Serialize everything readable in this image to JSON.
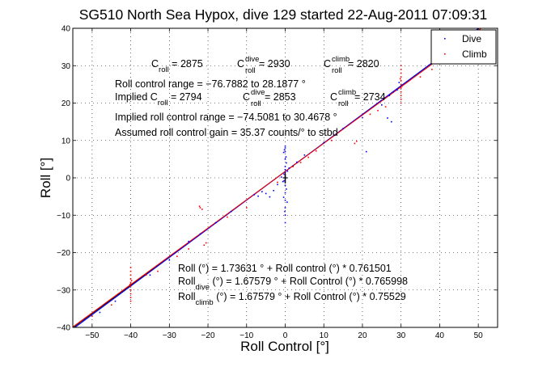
{
  "chart_data": {
    "type": "scatter",
    "title": "SG510 North Sea Hypox, dive 129 started 22-Aug-2011 07:09:31",
    "xlabel": "Roll Control [°]",
    "ylabel": "Roll [°]",
    "xlim": [
      -55,
      55
    ],
    "ylim": [
      -40,
      40
    ],
    "xticks": [
      -50,
      -40,
      -30,
      -20,
      -10,
      0,
      10,
      20,
      30,
      40,
      50
    ],
    "yticks": [
      -40,
      -30,
      -20,
      -10,
      0,
      10,
      20,
      30,
      40
    ],
    "xtick_labels": [
      "−50",
      "−40",
      "−30",
      "−20",
      "−10",
      "0",
      "10",
      "20",
      "30",
      "40",
      "50"
    ],
    "ytick_labels": [
      "−40",
      "−30",
      "−20",
      "−10",
      "0",
      "10",
      "20",
      "30",
      "40"
    ],
    "grid": true,
    "legend_position": "top-right",
    "legend": [
      {
        "label": "Dive",
        "color": "#0000ff"
      },
      {
        "label": "Climb",
        "color": "#ff0000"
      }
    ],
    "series": [
      {
        "name": "Dive",
        "color": "#0000ff",
        "points": [
          [
            0,
            0.3
          ],
          [
            0,
            0.6
          ],
          [
            0,
            -0.4
          ],
          [
            0,
            1.5
          ],
          [
            0,
            3
          ],
          [
            0,
            5
          ],
          [
            0,
            7
          ],
          [
            0,
            8
          ],
          [
            0,
            8.5
          ],
          [
            0,
            -2
          ],
          [
            0,
            -4
          ],
          [
            0,
            -6
          ],
          [
            0,
            -8
          ],
          [
            0,
            -10
          ],
          [
            0,
            -12
          ],
          [
            0,
            2.2
          ],
          [
            0,
            -1.2
          ],
          [
            -0.4,
            6.8
          ],
          [
            -0.4,
            -5.2
          ],
          [
            0.3,
            4
          ],
          [
            0.3,
            -3
          ],
          [
            -0.3,
            1
          ],
          [
            -0.3,
            -0.8
          ],
          [
            0.5,
            -6.5
          ],
          [
            -0.2,
            7.5
          ],
          [
            -0.1,
            -9
          ],
          [
            0.2,
            5.6
          ],
          [
            -1,
            0.2
          ],
          [
            -2,
            -1.8
          ],
          [
            -3,
            -3.4
          ],
          [
            -4,
            -5.1
          ],
          [
            1,
            2.6
          ],
          [
            2,
            3.2
          ],
          [
            3,
            4.2
          ],
          [
            5,
            6.1
          ],
          [
            10,
            9.4
          ],
          [
            15,
            13.2
          ],
          [
            20,
            16.1
          ],
          [
            25,
            19.5
          ],
          [
            27,
            22
          ],
          [
            28,
            23
          ],
          [
            29,
            23.5
          ],
          [
            30,
            24.5
          ],
          [
            26.5,
            16
          ],
          [
            29.5,
            25.5
          ],
          [
            -8,
            -4.5
          ],
          [
            -6,
            -3.7
          ],
          [
            -7,
            -4.9
          ],
          [
            -5,
            -4.2
          ],
          [
            21,
            7
          ],
          [
            27.5,
            15
          ],
          [
            -14,
            -9
          ],
          [
            -18,
            -12
          ],
          [
            -22,
            -15
          ],
          [
            -25,
            -17
          ],
          [
            -30,
            -22
          ],
          [
            -35,
            -26
          ],
          [
            -40,
            -30
          ],
          [
            -44,
            -33
          ],
          [
            -48,
            -36
          ],
          [
            -52,
            -38
          ],
          [
            40,
            31
          ],
          [
            45,
            35
          ],
          [
            50,
            38
          ],
          [
            52,
            39.5
          ],
          [
            0.6,
            1.8
          ],
          [
            -0.6,
            -1
          ]
        ]
      },
      {
        "name": "Climb",
        "color": "#ff0000",
        "points": [
          [
            -40,
            -24
          ],
          [
            -40,
            -25
          ],
          [
            -40,
            -26
          ],
          [
            -40,
            -27
          ],
          [
            -40,
            -28
          ],
          [
            -40,
            -29
          ],
          [
            -40,
            -30
          ],
          [
            -40,
            -31
          ],
          [
            -40,
            -32
          ],
          [
            -40,
            -33
          ],
          [
            -40.2,
            -28.5
          ],
          [
            -39.8,
            -27.5
          ],
          [
            30,
            20
          ],
          [
            30,
            21
          ],
          [
            30,
            22
          ],
          [
            30,
            23
          ],
          [
            30,
            24
          ],
          [
            30,
            25
          ],
          [
            30,
            26
          ],
          [
            30,
            27
          ],
          [
            30,
            28
          ],
          [
            30,
            29
          ],
          [
            30,
            30
          ],
          [
            30.2,
            24.5
          ],
          [
            29.8,
            26.5
          ],
          [
            -22,
            -8
          ],
          [
            -21.5,
            -8.4
          ],
          [
            -22.2,
            -7.6
          ],
          [
            -21,
            -18
          ],
          [
            -20.5,
            -17.4
          ],
          [
            18,
            9.2
          ],
          [
            18.5,
            9.8
          ],
          [
            22,
            17
          ],
          [
            24,
            18
          ],
          [
            26,
            19
          ],
          [
            35,
            27
          ],
          [
            38,
            29
          ],
          [
            42,
            32
          ],
          [
            46,
            35.5
          ],
          [
            48,
            37
          ],
          [
            -10,
            -8
          ],
          [
            -15,
            -10.5
          ],
          [
            -25,
            -19
          ],
          [
            -28,
            -21
          ],
          [
            -33,
            -25
          ],
          [
            -36,
            -26
          ],
          [
            -45,
            -34
          ],
          [
            -50,
            -37
          ],
          [
            -53,
            -38.5
          ],
          [
            -2,
            -1.2
          ],
          [
            2,
            3
          ],
          [
            4,
            4.1
          ],
          [
            6,
            5.5
          ],
          [
            8,
            7.2
          ],
          [
            12,
            10
          ],
          [
            0,
            -0.8
          ],
          [
            0,
            0.9
          ]
        ]
      }
    ],
    "fit_lines": [
      {
        "name": "all",
        "color": "#000000",
        "intercept": 1.73631,
        "slope": 0.761501
      },
      {
        "name": "dive",
        "color": "#0000ff",
        "intercept": 1.67579,
        "slope": 0.765998
      },
      {
        "name": "climb",
        "color": "#ff0000",
        "intercept": 1.67579,
        "slope": 0.75529
      }
    ],
    "center_marker": {
      "x": 0,
      "y": 0,
      "color": "#000000"
    },
    "annotations": {
      "c_roll": {
        "main": "C",
        "sub": "roll",
        "value": " = 2875"
      },
      "c_roll_dive": {
        "main": "C",
        "sup": "dive",
        "sub": "roll",
        "value": " = 2930"
      },
      "c_roll_climb": {
        "main": "C",
        "sup": "climb",
        "sub": "roll",
        "value": " = 2820"
      },
      "roll_control_range": "Roll control range = −76.7882 to 28.1877 °",
      "implied_c_roll": {
        "main": "Implied C",
        "sub": "roll",
        "value": " = 2794"
      },
      "implied_c_roll_dive": {
        "main": "C",
        "sup": "dive",
        "sub": "roll",
        "value": " = 2853"
      },
      "implied_c_roll_climb": {
        "main": "C",
        "sup": "climb",
        "sub": "roll",
        "value": " = 2734"
      },
      "implied_roll_control_range": "Implied roll control range = −74.5081 to 30.4678 °",
      "assumed_gain": "Assumed roll control gain = 35.37 counts/° to stbd",
      "fit_all": "Roll (°) = 1.73631 ° + Roll control (°) * 0.761501",
      "fit_dive": {
        "main": "Roll",
        "sub": "dive",
        "value": " (°) = 1.67579 ° + Roll Control (°) * 0.765998"
      },
      "fit_climb": {
        "main": "Roll",
        "sub": "climb",
        "value": " (°) = 1.67579 ° + Roll Control (°) * 0.75529"
      }
    }
  }
}
